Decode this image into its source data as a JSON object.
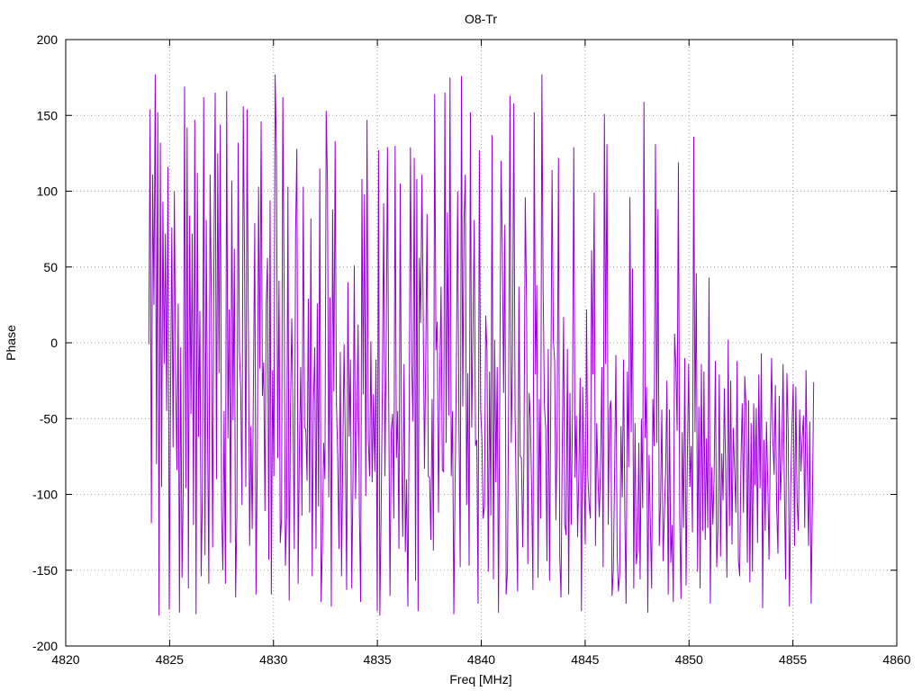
{
  "chart_data": {
    "type": "line",
    "title": "O8-Tr",
    "xlabel": "Freq [MHz]",
    "ylabel": "Phase",
    "xlim": [
      4820,
      4860
    ],
    "ylim": [
      -200,
      200
    ],
    "xticks": [
      4820,
      4825,
      4830,
      4835,
      4840,
      4845,
      4850,
      4855,
      4860
    ],
    "yticks": [
      -200,
      -150,
      -100,
      -50,
      0,
      50,
      100,
      150,
      200
    ],
    "grid": true,
    "legend": "none",
    "series": [
      {
        "color": "#9400d3",
        "x_start": 4824.0,
        "x_end": 4856.0,
        "x_step": 0.0625,
        "values": [
          -1,
          154,
          -119,
          111,
          25,
          177,
          -80,
          152,
          -180,
          132,
          -95,
          93,
          -14,
          72,
          -45,
          116,
          -176,
          -37,
          76,
          -69,
          100,
          -22,
          -84,
          26,
          -178,
          -3,
          -155,
          -95,
          169,
          -96,
          142,
          -162,
          84,
          -47,
          72,
          -120,
          147,
          -179,
          112,
          -62,
          21,
          -154,
          -98,
          162,
          -140,
          81,
          -57,
          -159,
          111,
          28,
          -135,
          57,
          165,
          -90,
          125,
          -20,
          144,
          -110,
          -150,
          -45,
          -159,
          166,
          -63,
          22,
          -132,
          107,
          -51,
          62,
          -168,
          -112,
          132,
          -5,
          -31,
          -107,
          156,
          54,
          -95,
          154,
          7,
          -134,
          -55,
          -123,
          -24,
          79,
          -166,
          -74,
          103,
          -17,
          146,
          -35,
          -13,
          -111,
          26,
          56,
          -143,
          94,
          -166,
          -18,
          -88,
          177,
          125,
          -76,
          41,
          -132,
          -116,
          162,
          38,
          -147,
          -114,
          103,
          -170,
          -44,
          16,
          -49,
          -136,
          72,
          128,
          -159,
          -67,
          -16,
          -114,
          103,
          -56,
          -57,
          -91,
          29,
          -112,
          82,
          -154,
          -40,
          -3,
          -136,
          26,
          -108,
          115,
          -171,
          -134,
          -66,
          -90,
          153,
          104,
          -102,
          30,
          -174,
          88,
          -32,
          133,
          -40,
          -75,
          -136,
          -6,
          -154,
          -73,
          -1,
          -68,
          -163,
          40,
          -62,
          -11,
          -162,
          -90,
          51,
          -103,
          -51,
          12,
          -112,
          -171,
          108,
          -34,
          98,
          -101,
          147,
          -64,
          -88,
          1,
          -92,
          -34,
          -85,
          -11,
          -177,
          127,
          -180,
          -115,
          -30,
          92,
          -88,
          -4,
          129,
          -40,
          -167,
          -58,
          -47,
          -116,
          130,
          -76,
          -45,
          -136,
          105,
          -64,
          -128,
          -14,
          -138,
          -90,
          -174,
          -53,
          129,
          -13,
          -52,
          122,
          -157,
          108,
          -177,
          56,
          13,
          111,
          20,
          -83,
          -11,
          85,
          -88,
          -89,
          -130,
          -37,
          -137,
          164,
          -5,
          14,
          -112,
          -22,
          37,
          -84,
          -85,
          165,
          -66,
          86,
          -48,
          175,
          -88,
          -45,
          -179,
          -93,
          -17,
          100,
          -50,
          -148,
          176,
          -42,
          81,
          111,
          -107,
          -20,
          -147,
          152,
          -56,
          7,
          81,
          -68,
          -64,
          -172,
          127,
          -43,
          -63,
          -116,
          -108,
          18,
          -6,
          -151,
          -19,
          -114,
          137,
          -156,
          2,
          -92,
          -16,
          -178,
          -31,
          120,
          63,
          -33,
          78,
          -166,
          -151,
          -32,
          163,
          -66,
          -11,
          158,
          -47,
          -109,
          -164,
          37,
          -75,
          -76,
          -135,
          -70,
          96,
          26,
          -146,
          -33,
          -50,
          -98,
          -163,
          152,
          -21,
          38,
          -155,
          -37,
          -116,
          177,
          35,
          -42,
          -56,
          -144,
          -4,
          -157,
          -34,
          114,
          2,
          -12,
          -117,
          -53,
          122,
          -141,
          -168,
          -65,
          17,
          -120,
          -127,
          -4,
          -166,
          -33,
          -120,
          -45,
          129,
          -89,
          -48,
          -128,
          -86,
          -23,
          -177,
          -29,
          -81,
          -133,
          22,
          -88,
          -106,
          -116,
          61,
          -21,
          99,
          -134,
          -53,
          -90,
          -115,
          -80,
          -16,
          -148,
          151,
          -14,
          131,
          -120,
          -44,
          -38,
          -167,
          -150,
          -85,
          -8,
          -139,
          -164,
          -152,
          -55,
          -102,
          -11,
          -112,
          -172,
          -19,
          -82,
          96,
          -59,
          49,
          -162,
          -53,
          -146,
          -137,
          -66,
          -156,
          -50,
          -109,
          159,
          -63,
          -29,
          -178,
          -74,
          -119,
          -162,
          -37,
          -68,
          131,
          -66,
          88,
          -134,
          -105,
          -44,
          -144,
          -113,
          -85,
          -25,
          -166,
          -44,
          -145,
          -120,
          -171,
          6,
          -15,
          -58,
          119,
          -113,
          -169,
          -59,
          -122,
          -10,
          -160,
          -76,
          -14,
          -95,
          -68,
          -125,
          136,
          -59,
          46,
          -151,
          -42,
          -162,
          -14,
          -124,
          -19,
          -130,
          -63,
          -122,
          43,
          -172,
          -82,
          -120,
          -87,
          -12,
          -148,
          -123,
          -21,
          -141,
          -73,
          -104,
          -30,
          -83,
          -155,
          2,
          -121,
          -25,
          -133,
          -56,
          -83,
          -112,
          -12,
          -143,
          -154,
          -79,
          -40,
          -112,
          -22,
          -43,
          -145,
          -38,
          -158,
          -53,
          -151,
          -40,
          -94,
          -43,
          -132,
          -21,
          -96,
          -7,
          -175,
          -64,
          -124,
          -52,
          -92,
          -143,
          -70,
          -10,
          -64,
          -87,
          -28,
          -109,
          -139,
          -35,
          -104,
          -75,
          -14,
          -93,
          -156,
          -20,
          -57,
          -174,
          -95,
          -54,
          -27,
          -134,
          -29,
          -105,
          -124,
          -44,
          -85,
          -63,
          -48,
          -122,
          -18,
          -85,
          -134,
          -52,
          -172,
          -106,
          -26
        ]
      }
    ]
  }
}
